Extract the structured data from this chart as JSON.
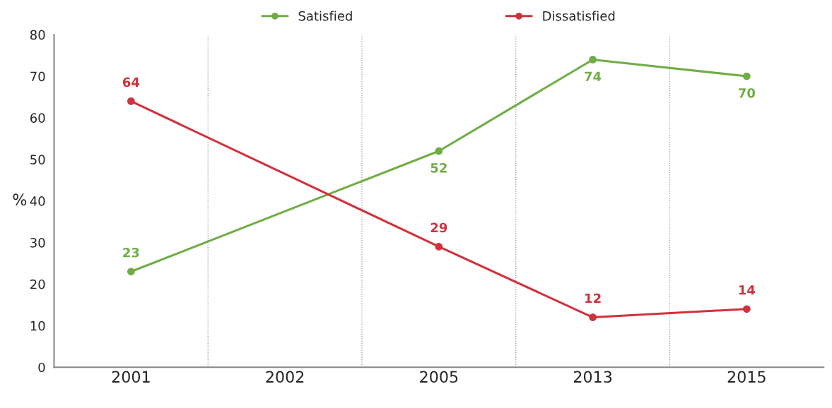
{
  "chart_data": {
    "type": "line",
    "ylabel": "%",
    "categories": [
      "2001",
      "2002",
      "2005",
      "2013",
      "2015"
    ],
    "series": [
      {
        "name": "Satisfied",
        "color": "#70ad47",
        "values": [
          23,
          null,
          52,
          74,
          70
        ]
      },
      {
        "name": "Dissatisfied",
        "color": "#d0323c",
        "values": [
          64,
          null,
          29,
          12,
          14
        ]
      }
    ],
    "ylim": [
      0,
      80
    ],
    "yticks": [
      0,
      10,
      20,
      30,
      40,
      50,
      60,
      70,
      80
    ],
    "grid": "x",
    "legend": "top",
    "marker": "circle",
    "line_style": "solid",
    "data_labels": true
  }
}
